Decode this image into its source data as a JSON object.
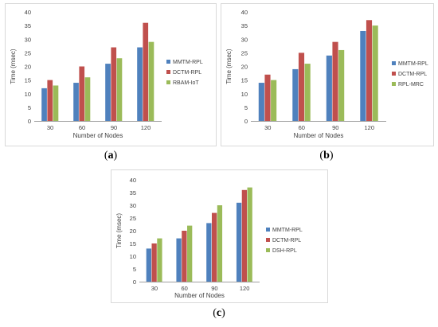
{
  "captions": {
    "a": {
      "open": "(",
      "letter": "a",
      "close": ")"
    },
    "b": {
      "open": "(",
      "letter": "b",
      "close": ")"
    },
    "c": {
      "open": "(",
      "letter": "c",
      "close": ")"
    }
  },
  "colors": {
    "series1": "#4f81bd",
    "series2": "#c0504d",
    "series3": "#9bbb59",
    "axis": "#808080",
    "text": "#404040",
    "border": "#d9d9d9"
  },
  "chart_data": [
    {
      "type": "bar",
      "panel": "a",
      "categories": [
        "30",
        "60",
        "90",
        "120"
      ],
      "series": [
        {
          "name": "MMTM-RPL",
          "values": [
            12,
            14,
            21,
            27
          ]
        },
        {
          "name": "DCTM-RPL",
          "values": [
            15,
            20,
            27,
            36
          ]
        },
        {
          "name": "RBAM-IoT",
          "values": [
            13,
            16,
            23,
            29
          ]
        }
      ],
      "xlabel": "Number of Nodes",
      "ylabel": "Time (msec)",
      "ylim": [
        0,
        40
      ],
      "yticks": [
        "0",
        "5",
        "10",
        "15",
        "20",
        "25",
        "30",
        "35",
        "40"
      ],
      "legend": "right",
      "grid": false
    },
    {
      "type": "bar",
      "panel": "b",
      "categories": [
        "30",
        "60",
        "90",
        "120"
      ],
      "series": [
        {
          "name": "MMTM-RPL",
          "values": [
            14,
            19,
            24,
            33
          ]
        },
        {
          "name": "DCTM-RPL",
          "values": [
            17,
            25,
            29,
            37
          ]
        },
        {
          "name": "RPL-MRC",
          "values": [
            15,
            21,
            26,
            35
          ]
        }
      ],
      "xlabel": "Number of Nodes",
      "ylabel": "Time (msec)",
      "ylim": [
        0,
        40
      ],
      "yticks": [
        "0",
        "5",
        "10",
        "15",
        "20",
        "25",
        "30",
        "35",
        "40"
      ],
      "legend": "right",
      "grid": false
    },
    {
      "type": "bar",
      "panel": "c",
      "categories": [
        "30",
        "60",
        "90",
        "120"
      ],
      "series": [
        {
          "name": "MMTM-RPL",
          "values": [
            13,
            17,
            23,
            31
          ]
        },
        {
          "name": "DCTM-RPL",
          "values": [
            15,
            20,
            27,
            36
          ]
        },
        {
          "name": "DSH-RPL",
          "values": [
            17,
            22,
            30,
            37
          ]
        }
      ],
      "xlabel": "Number of Nodes",
      "ylabel": "Time (msec)",
      "ylim": [
        0,
        40
      ],
      "yticks": [
        "0",
        "5",
        "10",
        "15",
        "20",
        "25",
        "30",
        "35",
        "40"
      ],
      "legend": "right",
      "grid": false
    }
  ]
}
